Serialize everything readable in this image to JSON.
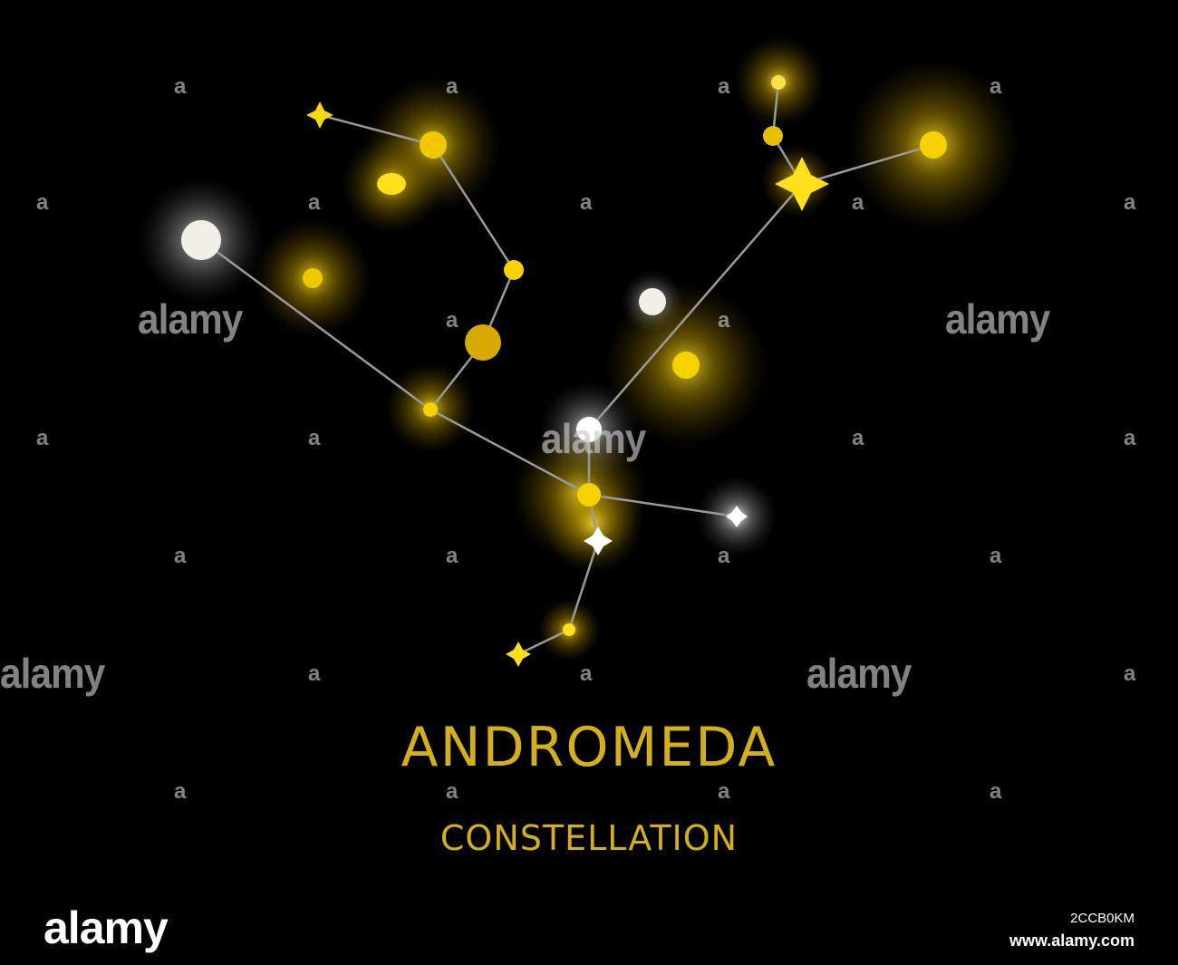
{
  "title": "ANDROMEDA",
  "subtitle": "CONSTELLATION",
  "colors": {
    "background": "#000000",
    "star_yellow": "#f5d90a",
    "star_white": "#f2f0e6",
    "title": "#d4af1c",
    "line": "#9a9a9a"
  },
  "watermark": {
    "word": "alamy",
    "letter": "a"
  },
  "footer": {
    "logo": "alamy",
    "image_id": "2CCB0KM",
    "site": "www.alamy.com"
  }
}
